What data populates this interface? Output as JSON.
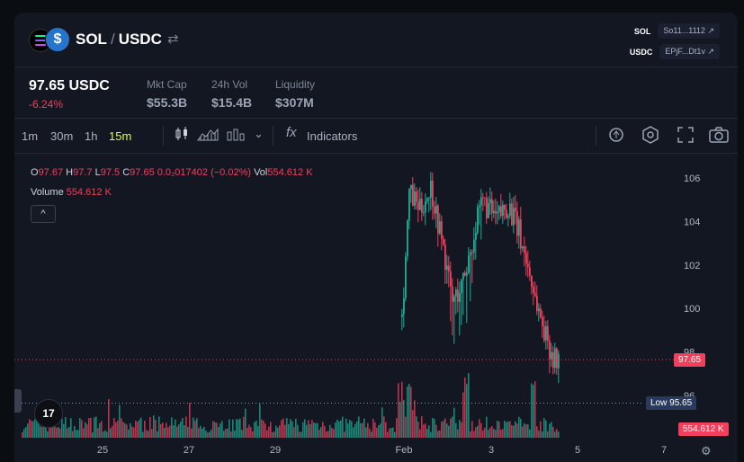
{
  "header": {
    "base": "SOL",
    "quote": "USDC",
    "separator": "/",
    "swap_icon": "swap-arrows-icon",
    "addresses": [
      {
        "symbol": "SOL",
        "address": "So11...1112"
      },
      {
        "symbol": "USDC",
        "address": "EPjF...Dt1v"
      }
    ]
  },
  "stats": {
    "price": "97.65 USDC",
    "change": "-6.24%",
    "mkt_cap_label": "Mkt Cap",
    "mkt_cap": "$55.3B",
    "vol_label": "24h Vol",
    "vol": "$15.4B",
    "liq_label": "Liquidity",
    "liq": "$307M"
  },
  "toolbar": {
    "timeframes": [
      "1m",
      "30m",
      "1h",
      "15m"
    ],
    "active_timeframe": "15m",
    "indicators_label": "Indicators",
    "fx_label": "fx"
  },
  "legend": {
    "o_label": "O",
    "o": "97.67",
    "h_label": "H",
    "h": "97.7",
    "l_label": "L",
    "l": "97.5",
    "c_label": "C",
    "c": "97.65",
    "delta": "0.0₂017402 (−0.02%)",
    "vol_label": "Vol",
    "vol": "554.612 K",
    "volume_label": "Volume",
    "volume": "554.612 K",
    "collapse": "^"
  },
  "chart_data": {
    "type": "candlestick",
    "y_ticks": [
      "106",
      "104",
      "102",
      "100",
      "98",
      "96"
    ],
    "x_ticks": [
      "25",
      "27",
      "29",
      "Feb",
      "3",
      "5",
      "7"
    ],
    "last_price": "97.65",
    "low_label": "Low",
    "low_value": "95.65",
    "volume_last": "554.612 K",
    "ylim": [
      95,
      107
    ],
    "colors": {
      "up": "#22ab94",
      "down": "#f23f5c"
    }
  }
}
